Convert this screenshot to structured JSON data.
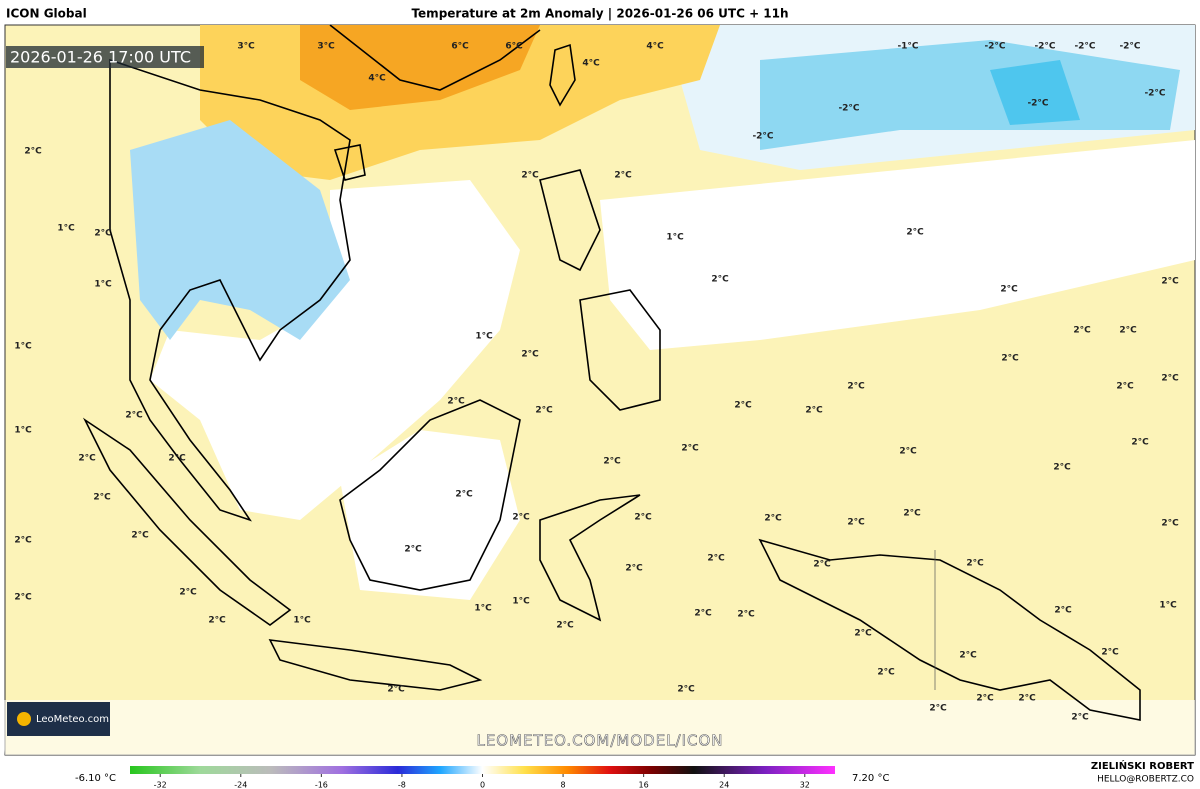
{
  "header": {
    "model": "ICON Global",
    "title": "Temperature at 2m Anomaly | 2026-01-26 06 UTC + 11h"
  },
  "valid_time": "2026-01-26 17:00 UTC",
  "logo": "LeoMeteo.com",
  "watermark": "LEOMETEO.COM/MODEL/ICON",
  "map_labels": [
    "3°C",
    "3°C",
    "6°C",
    "6°C",
    "4°C",
    "4°C",
    "4°C",
    "-1°C",
    "-2°C",
    "-2°C",
    "-2°C",
    "-2°C",
    "-2°C",
    "-2°C",
    "-2°C",
    "-2°C",
    "2°C",
    "2°C",
    "2°C",
    "1°C",
    "2°C",
    "1°C",
    "2°C",
    "2°C",
    "1°C",
    "2°C",
    "2°C",
    "1°C",
    "1°C",
    "2°C",
    "2°C",
    "2°C",
    "2°C",
    "2°C",
    "2°C",
    "2°C",
    "2°C",
    "2°C",
    "2°C",
    "2°C",
    "1°C",
    "2°C",
    "2°C",
    "2°C",
    "2°C",
    "2°C",
    "2°C",
    "2°C",
    "2°C",
    "2°C",
    "2°C",
    "2°C",
    "2°C",
    "2°C",
    "2°C",
    "2°C",
    "2°C",
    "2°C",
    "2°C",
    "2°C",
    "2°C",
    "2°C",
    "2°C",
    "2°C",
    "2°C",
    "2°C",
    "1°C",
    "1°C",
    "2°C",
    "2°C",
    "2°C",
    "2°C",
    "1°C",
    "2°C",
    "1°C",
    "2°C",
    "2°C",
    "2°C",
    "2°C",
    "2°C",
    "2°C",
    "2°C",
    "2°C",
    "2°C",
    "2°C"
  ],
  "colorbar": {
    "lim": [
      -35,
      35
    ],
    "ticks": [
      -32,
      -24,
      -16,
      -8,
      0,
      8,
      16,
      24,
      32
    ],
    "min_label": "-6.10 °C",
    "max_label": "7.20 °C"
  },
  "author": {
    "name": "ZIELIŃSKI ROBERT",
    "email": "HELLO@ROBERTZ.CO"
  }
}
